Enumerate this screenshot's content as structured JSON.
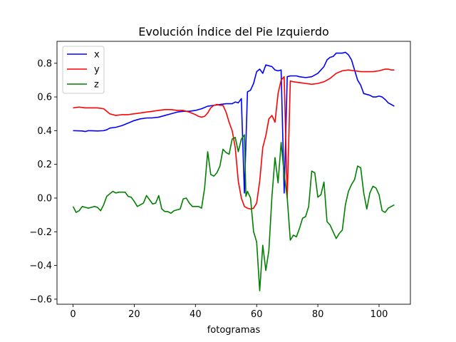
{
  "chart_data": {
    "type": "line",
    "title": "Evolución Índice del Pie Izquierdo",
    "xlabel": "fotogramas",
    "ylabel": "",
    "xlim": [
      -5.25,
      110.25
    ],
    "ylim": [
      -0.63,
      0.93
    ],
    "x_ticks": [
      0,
      20,
      40,
      60,
      80,
      100
    ],
    "x_tick_labels": [
      "0",
      "20",
      "40",
      "60",
      "80",
      "100"
    ],
    "y_ticks": [
      -0.6,
      -0.4,
      -0.2,
      0.0,
      0.2,
      0.4,
      0.6,
      0.8
    ],
    "y_tick_labels": [
      "−0.6",
      "−0.4",
      "−0.2",
      "0.0",
      "0.2",
      "0.4",
      "0.6",
      "0.8"
    ],
    "grid": false,
    "legend": "top-left",
    "series": [
      {
        "name": "x",
        "color": "#0000ff",
        "points": [
          [
            0,
            0.4
          ],
          [
            3,
            0.398
          ],
          [
            4,
            0.395
          ],
          [
            5,
            0.4
          ],
          [
            8,
            0.398
          ],
          [
            10,
            0.4
          ],
          [
            11,
            0.405
          ],
          [
            12,
            0.415
          ],
          [
            14,
            0.42
          ],
          [
            16,
            0.43
          ],
          [
            18,
            0.445
          ],
          [
            20,
            0.46
          ],
          [
            22,
            0.47
          ],
          [
            24,
            0.475
          ],
          [
            26,
            0.476
          ],
          [
            28,
            0.48
          ],
          [
            30,
            0.49
          ],
          [
            32,
            0.5
          ],
          [
            34,
            0.51
          ],
          [
            36,
            0.515
          ],
          [
            38,
            0.515
          ],
          [
            40,
            0.52
          ],
          [
            42,
            0.53
          ],
          [
            44,
            0.545
          ],
          [
            46,
            0.55
          ],
          [
            48,
            0.555
          ],
          [
            50,
            0.56
          ],
          [
            52,
            0.56
          ],
          [
            53,
            0.57
          ],
          [
            54,
            0.565
          ],
          [
            55,
            0.59
          ],
          [
            56,
            0.03
          ],
          [
            57,
            0.63
          ],
          [
            58,
            0.64
          ],
          [
            59,
            0.68
          ],
          [
            60,
            0.75
          ],
          [
            61,
            0.765
          ],
          [
            62,
            0.74
          ],
          [
            63,
            0.79
          ],
          [
            64,
            0.785
          ],
          [
            65,
            0.78
          ],
          [
            66,
            0.76
          ],
          [
            67,
            0.755
          ],
          [
            68,
            0.76
          ],
          [
            69,
            0.03
          ],
          [
            70,
            0.72
          ],
          [
            71,
            0.725
          ],
          [
            73,
            0.725
          ],
          [
            74,
            0.72
          ],
          [
            76,
            0.715
          ],
          [
            78,
            0.72
          ],
          [
            80,
            0.74
          ],
          [
            82,
            0.78
          ],
          [
            83,
            0.82
          ],
          [
            84,
            0.835
          ],
          [
            85,
            0.84
          ],
          [
            86,
            0.86
          ],
          [
            88,
            0.86
          ],
          [
            89,
            0.865
          ],
          [
            90,
            0.85
          ],
          [
            91,
            0.82
          ],
          [
            92,
            0.76
          ],
          [
            93,
            0.7
          ],
          [
            94,
            0.67
          ],
          [
            95,
            0.62
          ],
          [
            97,
            0.61
          ],
          [
            98,
            0.6
          ],
          [
            99,
            0.6
          ],
          [
            100,
            0.605
          ],
          [
            101,
            0.6
          ],
          [
            102,
            0.585
          ],
          [
            103,
            0.565
          ],
          [
            104,
            0.555
          ],
          [
            105,
            0.545
          ]
        ]
      },
      {
        "name": "y",
        "color": "#ff0000",
        "points": [
          [
            0,
            0.535
          ],
          [
            2,
            0.54
          ],
          [
            4,
            0.535
          ],
          [
            6,
            0.535
          ],
          [
            8,
            0.535
          ],
          [
            10,
            0.53
          ],
          [
            11,
            0.515
          ],
          [
            12,
            0.5
          ],
          [
            14,
            0.49
          ],
          [
            16,
            0.495
          ],
          [
            18,
            0.495
          ],
          [
            20,
            0.5
          ],
          [
            22,
            0.505
          ],
          [
            24,
            0.51
          ],
          [
            26,
            0.515
          ],
          [
            28,
            0.52
          ],
          [
            30,
            0.525
          ],
          [
            32,
            0.525
          ],
          [
            34,
            0.52
          ],
          [
            36,
            0.52
          ],
          [
            38,
            0.51
          ],
          [
            40,
            0.495
          ],
          [
            41,
            0.485
          ],
          [
            42,
            0.48
          ],
          [
            43,
            0.485
          ],
          [
            44,
            0.505
          ],
          [
            45,
            0.535
          ],
          [
            46,
            0.55
          ],
          [
            47,
            0.555
          ],
          [
            48,
            0.55
          ],
          [
            49,
            0.55
          ],
          [
            50,
            0.51
          ],
          [
            51,
            0.45
          ],
          [
            52,
            0.4
          ],
          [
            53,
            0.3
          ],
          [
            54,
            0.1
          ],
          [
            55,
            0.0
          ],
          [
            56,
            -0.05
          ],
          [
            57,
            -0.06
          ],
          [
            58,
            -0.065
          ],
          [
            59,
            -0.06
          ],
          [
            60,
            -0.03
          ],
          [
            61,
            0.1
          ],
          [
            62,
            0.3
          ],
          [
            63,
            0.37
          ],
          [
            64,
            0.47
          ],
          [
            65,
            0.49
          ],
          [
            66,
            0.45
          ],
          [
            67,
            0.62
          ],
          [
            68,
            0.7
          ],
          [
            69,
            0.72
          ],
          [
            70,
            0.0
          ],
          [
            71,
            0.695
          ],
          [
            72,
            0.69
          ],
          [
            74,
            0.685
          ],
          [
            76,
            0.68
          ],
          [
            78,
            0.675
          ],
          [
            80,
            0.68
          ],
          [
            82,
            0.69
          ],
          [
            84,
            0.71
          ],
          [
            86,
            0.74
          ],
          [
            88,
            0.755
          ],
          [
            90,
            0.76
          ],
          [
            92,
            0.755
          ],
          [
            94,
            0.75
          ],
          [
            96,
            0.75
          ],
          [
            98,
            0.75
          ],
          [
            100,
            0.755
          ],
          [
            102,
            0.765
          ],
          [
            103,
            0.765
          ],
          [
            104,
            0.76
          ],
          [
            105,
            0.76
          ]
        ]
      },
      {
        "name": "z",
        "color": "#008000",
        "points": [
          [
            0,
            -0.05
          ],
          [
            1,
            -0.085
          ],
          [
            2,
            -0.075
          ],
          [
            3,
            -0.05
          ],
          [
            4,
            -0.055
          ],
          [
            5,
            -0.06
          ],
          [
            6,
            -0.055
          ],
          [
            7,
            -0.05
          ],
          [
            8,
            -0.055
          ],
          [
            9,
            -0.075
          ],
          [
            10,
            -0.04
          ],
          [
            11,
            0.01
          ],
          [
            12,
            0.025
          ],
          [
            13,
            0.04
          ],
          [
            14,
            0.03
          ],
          [
            15,
            0.035
          ],
          [
            16,
            0.035
          ],
          [
            17,
            0.035
          ],
          [
            18,
            0.01
          ],
          [
            19,
            0.005
          ],
          [
            20,
            -0.02
          ],
          [
            21,
            -0.05
          ],
          [
            22,
            -0.04
          ],
          [
            23,
            -0.03
          ],
          [
            24,
            0.015
          ],
          [
            25,
            -0.01
          ],
          [
            26,
            -0.035
          ],
          [
            27,
            -0.03
          ],
          [
            28,
            0.015
          ],
          [
            29,
            -0.065
          ],
          [
            30,
            -0.08
          ],
          [
            31,
            -0.08
          ],
          [
            32,
            -0.09
          ],
          [
            33,
            -0.075
          ],
          [
            34,
            -0.07
          ],
          [
            35,
            -0.065
          ],
          [
            36,
            -0.005
          ],
          [
            37,
            0.0
          ],
          [
            38,
            -0.03
          ],
          [
            39,
            -0.05
          ],
          [
            40,
            -0.05
          ],
          [
            41,
            -0.05
          ],
          [
            42,
            -0.06
          ],
          [
            43,
            0.06
          ],
          [
            44,
            0.275
          ],
          [
            45,
            0.14
          ],
          [
            46,
            0.13
          ],
          [
            47,
            0.15
          ],
          [
            48,
            0.19
          ],
          [
            49,
            0.29
          ],
          [
            50,
            0.27
          ],
          [
            51,
            0.26
          ],
          [
            52,
            0.35
          ],
          [
            53,
            0.36
          ],
          [
            54,
            0.275
          ],
          [
            55,
            0.35
          ],
          [
            56,
            0.375
          ],
          [
            56.5,
            0.01
          ],
          [
            57,
            0.04
          ],
          [
            58,
            0.0
          ],
          [
            59,
            -0.2
          ],
          [
            60,
            -0.26
          ],
          [
            61,
            -0.55
          ],
          [
            62,
            -0.28
          ],
          [
            63,
            -0.43
          ],
          [
            64,
            -0.31
          ],
          [
            65,
            0.01
          ],
          [
            66,
            0.24
          ],
          [
            67,
            0.09
          ],
          [
            68,
            0.33
          ],
          [
            69,
            0.14
          ],
          [
            70,
            0.0
          ],
          [
            71,
            -0.25
          ],
          [
            72,
            -0.22
          ],
          [
            73,
            -0.23
          ],
          [
            74,
            -0.18
          ],
          [
            75,
            -0.12
          ],
          [
            76,
            -0.11
          ],
          [
            77,
            -0.05
          ],
          [
            78,
            0.16
          ],
          [
            79,
            0.15
          ],
          [
            80,
            0.005
          ],
          [
            81,
            0.02
          ],
          [
            82,
            0.095
          ],
          [
            83,
            -0.14
          ],
          [
            84,
            -0.16
          ],
          [
            85,
            -0.2
          ],
          [
            86,
            -0.24
          ],
          [
            87,
            -0.21
          ],
          [
            88,
            -0.19
          ],
          [
            89,
            -0.04
          ],
          [
            90,
            0.04
          ],
          [
            91,
            0.08
          ],
          [
            92,
            0.11
          ],
          [
            93,
            0.19
          ],
          [
            94,
            0.18
          ],
          [
            95,
            0.03
          ],
          [
            96,
            -0.065
          ],
          [
            97,
            0.03
          ],
          [
            98,
            0.07
          ],
          [
            99,
            0.06
          ],
          [
            100,
            0.02
          ],
          [
            101,
            -0.075
          ],
          [
            102,
            -0.085
          ],
          [
            103,
            -0.06
          ],
          [
            104,
            -0.05
          ],
          [
            105,
            -0.04
          ]
        ]
      }
    ]
  }
}
